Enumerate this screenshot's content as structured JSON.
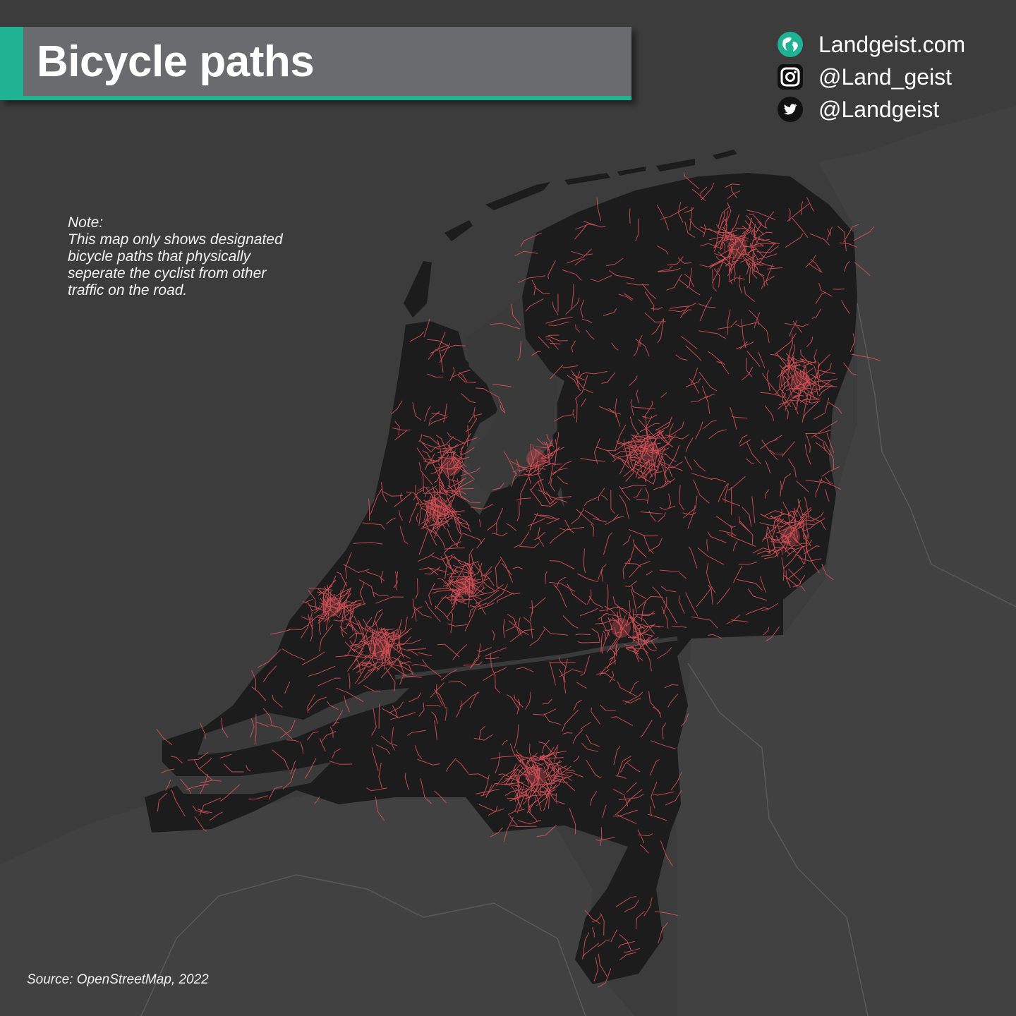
{
  "title": "Bicycle paths",
  "social": [
    {
      "icon": "globe-icon",
      "text": "Landgeist.com"
    },
    {
      "icon": "instagram-icon",
      "text": "@Land_geist"
    },
    {
      "icon": "twitter-icon",
      "text": "@Landgeist"
    }
  ],
  "note": {
    "lines": [
      "Note:",
      "This map only shows designated",
      "bicycle paths that physically",
      "seperate the cyclist from other",
      "traffic on the road."
    ]
  },
  "source": "Source: OpenStreetMap, 2022",
  "colors": {
    "background_sea": "#3c3c3c",
    "neighbor_land": "#414141",
    "country_land": "#1c1c1c",
    "water_inland": "#3a3a3a",
    "bicycle_paths": "#e0545a",
    "accent": "#1fb394",
    "banner": "#6a6b6e"
  }
}
